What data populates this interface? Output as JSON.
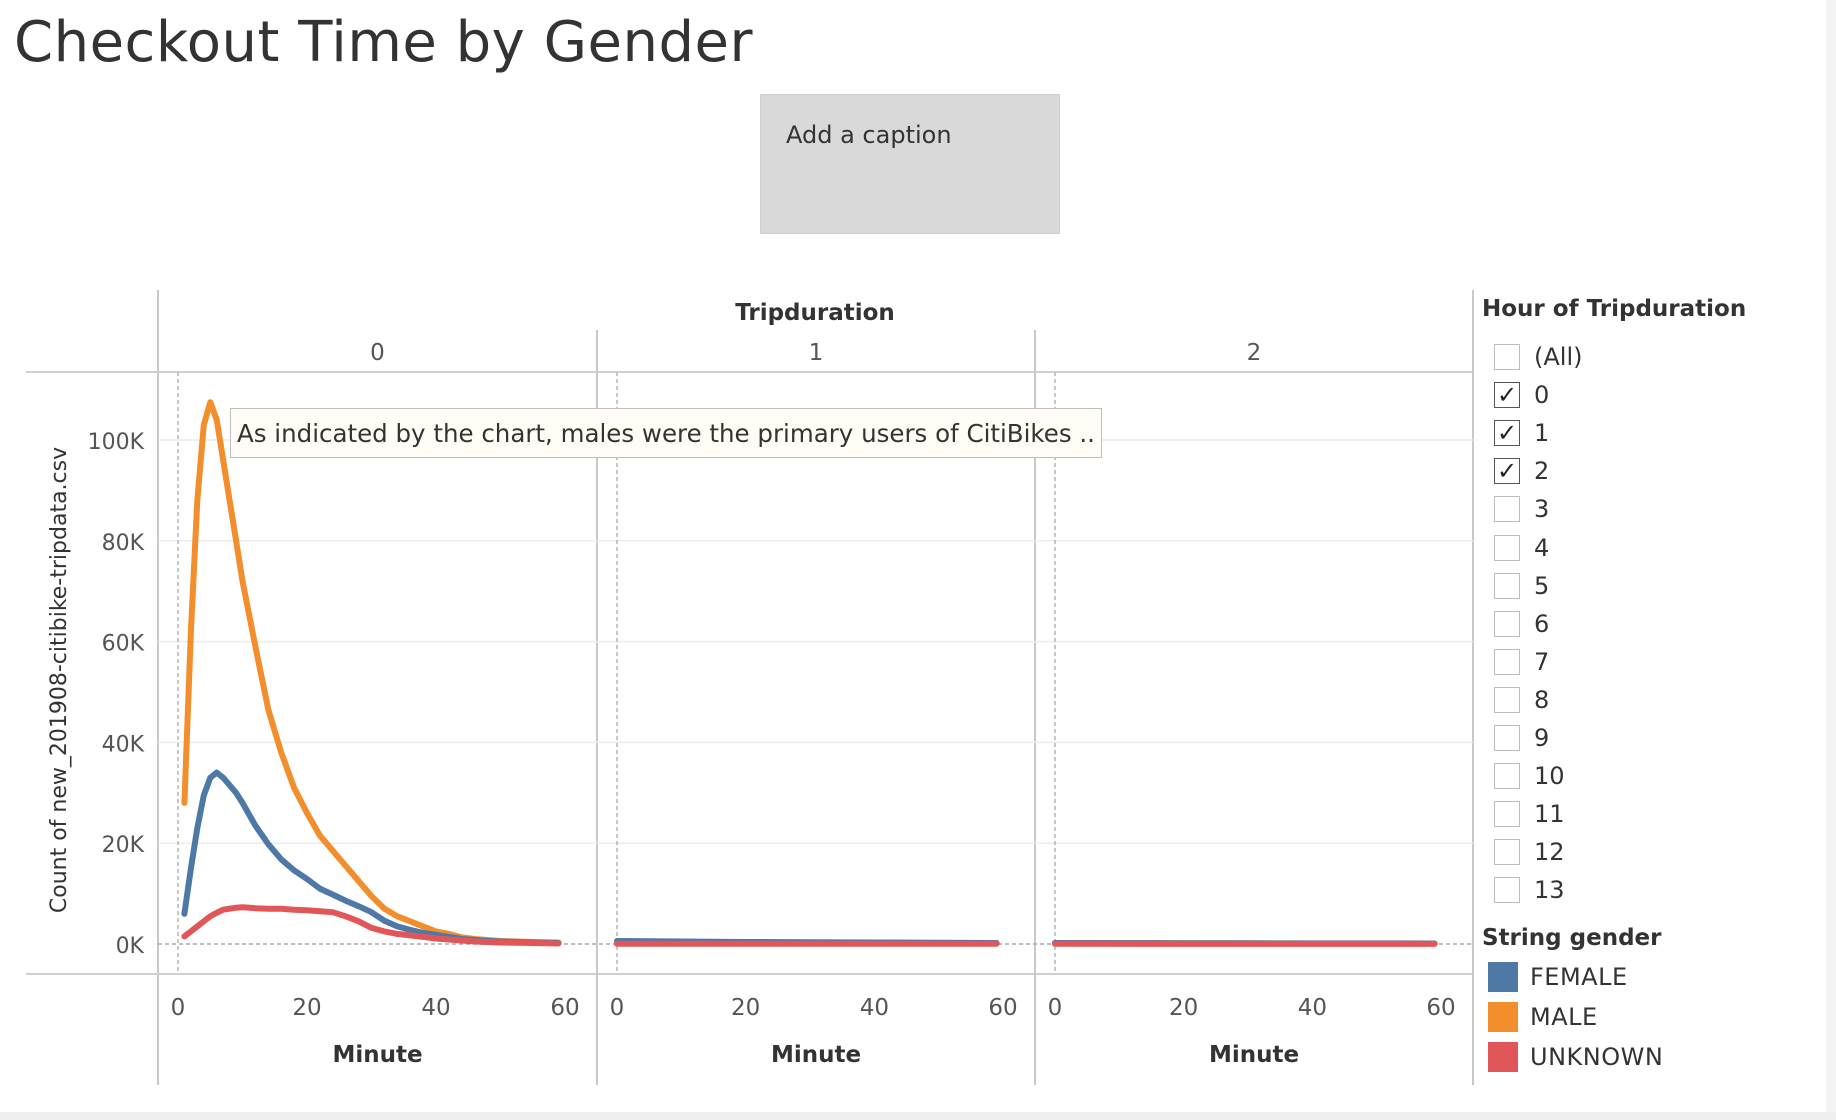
{
  "page": {
    "title": "Checkout Time by Gender"
  },
  "caption": {
    "text": "Add a caption"
  },
  "tooltip": {
    "text": "As indicated by the chart, males were the primary users of CitiBikes .."
  },
  "filter": {
    "title": "Hour of Tripduration",
    "items": [
      {
        "label": "(All)",
        "checked": false
      },
      {
        "label": "0",
        "checked": true
      },
      {
        "label": "1",
        "checked": true
      },
      {
        "label": "2",
        "checked": true
      },
      {
        "label": "3",
        "checked": false
      },
      {
        "label": "4",
        "checked": false
      },
      {
        "label": "5",
        "checked": false
      },
      {
        "label": "6",
        "checked": false
      },
      {
        "label": "7",
        "checked": false
      },
      {
        "label": "8",
        "checked": false
      },
      {
        "label": "9",
        "checked": false
      },
      {
        "label": "10",
        "checked": false
      },
      {
        "label": "11",
        "checked": false
      },
      {
        "label": "12",
        "checked": false
      },
      {
        "label": "13",
        "checked": false
      }
    ]
  },
  "color_legend": {
    "title": "String gender",
    "items": [
      {
        "label": "FEMALE",
        "color": "#4e79a7"
      },
      {
        "label": "MALE",
        "color": "#f28e2b"
      },
      {
        "label": "UNKNOWN",
        "color": "#e15759"
      }
    ]
  },
  "chart_data": {
    "type": "line",
    "column_header": "Tripduration",
    "panels": [
      "0",
      "1",
      "2"
    ],
    "xlabel": "Minute",
    "ylabel": "Count of new_201908-citibike-tripdata.csv",
    "xlim": [
      0,
      60
    ],
    "ylim": [
      0,
      110000
    ],
    "x_ticks": [
      "0",
      "20",
      "40",
      "60"
    ],
    "y_ticks": [
      {
        "value": 0,
        "label": "0K"
      },
      {
        "value": 20000,
        "label": "20K"
      },
      {
        "value": 40000,
        "label": "40K"
      },
      {
        "value": 60000,
        "label": "60K"
      },
      {
        "value": 80000,
        "label": "80K"
      },
      {
        "value": 100000,
        "label": "100K"
      }
    ],
    "series": [
      {
        "name": "MALE",
        "color": "#f28e2b",
        "panels": [
          {
            "x": [
              1,
              2,
              3,
              4,
              5,
              6,
              7,
              8,
              9,
              10,
              12,
              14,
              16,
              18,
              20,
              22,
              24,
              26,
              28,
              30,
              32,
              34,
              36,
              38,
              40,
              42,
              44,
              46,
              48,
              50,
              55,
              59
            ],
            "y": [
              28000,
              62000,
              88000,
              103000,
              107500,
              104000,
              96000,
              88000,
              80000,
              72000,
              59000,
              46500,
              38000,
              31000,
              26000,
              21500,
              18500,
              15500,
              12500,
              9500,
              7000,
              5500,
              4500,
              3500,
              2500,
              2000,
              1300,
              1000,
              800,
              600,
              400,
              300
            ]
          },
          {
            "x": [
              0,
              20,
              40,
              59
            ],
            "y": [
              500,
              300,
              200,
              150
            ]
          },
          {
            "x": [
              0,
              20,
              40,
              59
            ],
            "y": [
              200,
              150,
              100,
              100
            ]
          }
        ]
      },
      {
        "name": "FEMALE",
        "color": "#4e79a7",
        "panels": [
          {
            "x": [
              1,
              2,
              3,
              4,
              5,
              6,
              7,
              8,
              9,
              10,
              12,
              14,
              16,
              18,
              20,
              22,
              24,
              26,
              28,
              30,
              32,
              34,
              36,
              38,
              40,
              42,
              44,
              46,
              48,
              50,
              55,
              59
            ],
            "y": [
              6000,
              15000,
              23000,
              29500,
              33000,
              34000,
              33000,
              31500,
              30000,
              28000,
              23500,
              19800,
              16800,
              14600,
              12900,
              11000,
              9800,
              8600,
              7500,
              6300,
              4600,
              3500,
              2800,
              2200,
              1800,
              1400,
              1000,
              800,
              600,
              500,
              300,
              200
            ]
          },
          {
            "x": [
              0,
              10,
              20,
              30,
              40,
              50,
              59
            ],
            "y": [
              600,
              500,
              400,
              350,
              300,
              250,
              200
            ]
          },
          {
            "x": [
              0,
              10,
              20,
              30,
              40,
              50,
              59
            ],
            "y": [
              200,
              180,
              150,
              130,
              120,
              110,
              100
            ]
          }
        ]
      },
      {
        "name": "UNKNOWN",
        "color": "#e15759",
        "panels": [
          {
            "x": [
              1,
              2,
              3,
              4,
              5,
              6,
              7,
              8,
              9,
              10,
              12,
              14,
              16,
              18,
              20,
              22,
              24,
              26,
              28,
              30,
              32,
              34,
              36,
              38,
              40,
              42,
              44,
              46,
              48,
              50,
              55,
              59
            ],
            "y": [
              1500,
              2500,
              3500,
              4500,
              5500,
              6200,
              6800,
              7000,
              7200,
              7300,
              7100,
              7000,
              7000,
              6800,
              6700,
              6500,
              6300,
              5500,
              4500,
              3200,
              2500,
              2000,
              1700,
              1400,
              1100,
              900,
              700,
              500,
              400,
              300,
              200,
              100
            ]
          },
          {
            "x": [
              0,
              30,
              59
            ],
            "y": [
              50,
              40,
              30
            ]
          },
          {
            "x": [
              0,
              30,
              59
            ],
            "y": [
              30,
              20,
              20
            ]
          }
        ]
      }
    ]
  }
}
